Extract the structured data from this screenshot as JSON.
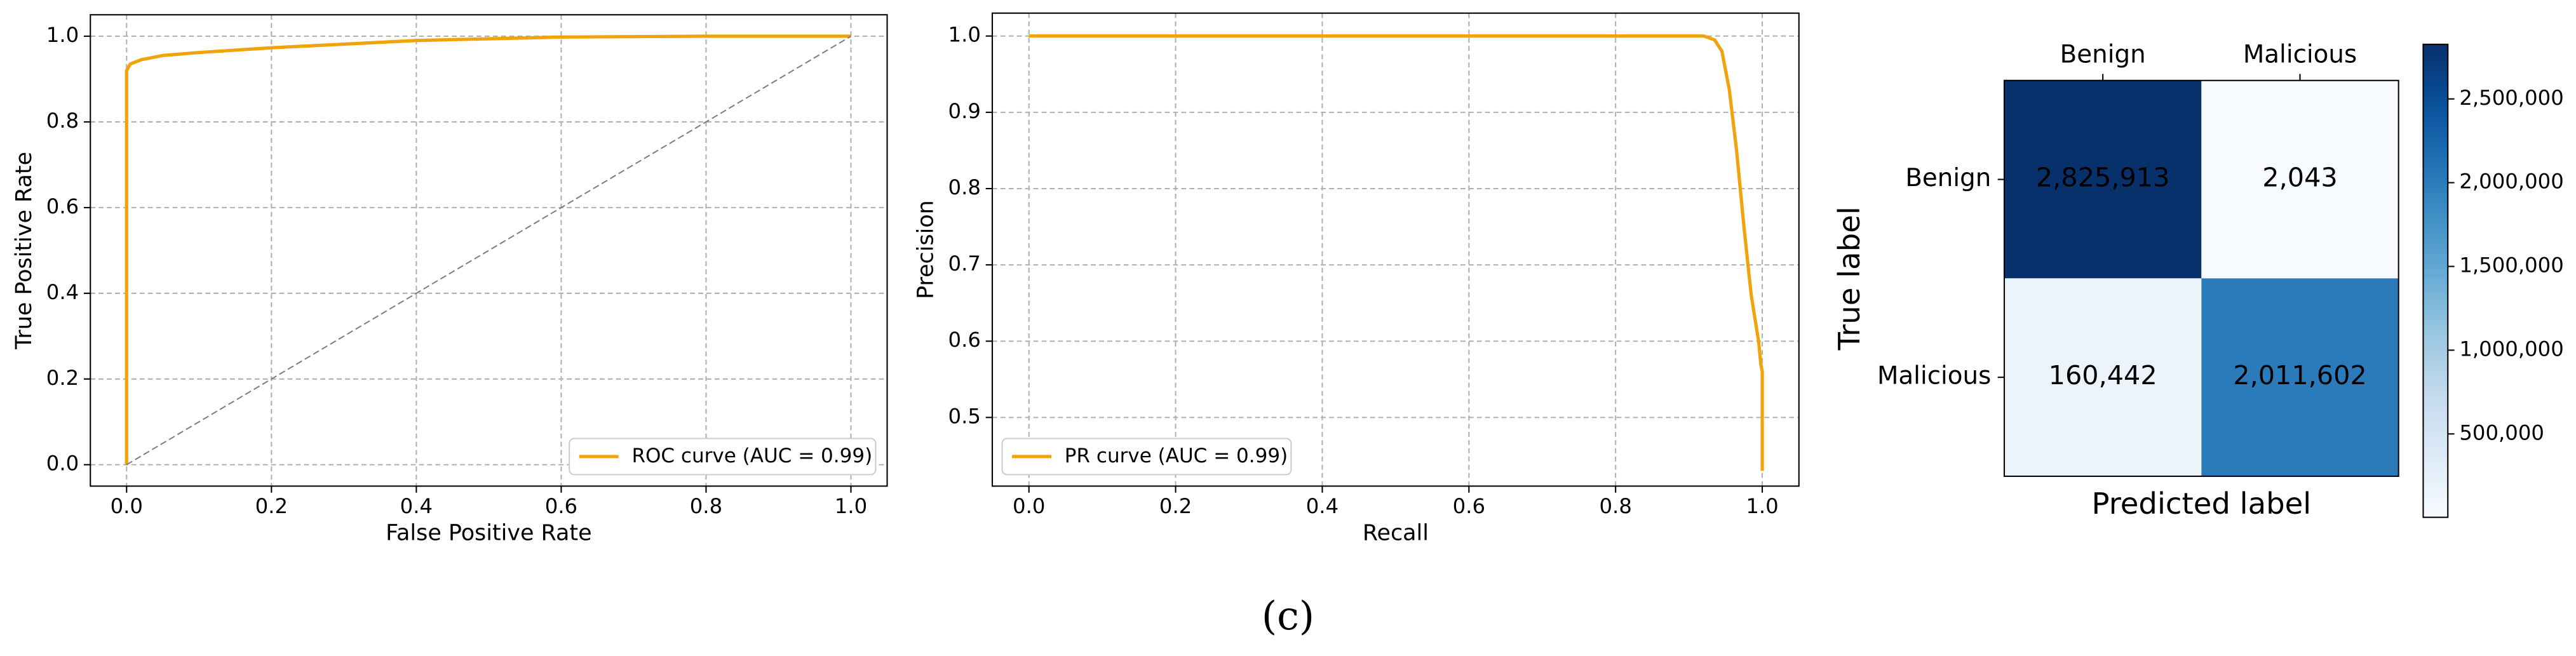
{
  "caption": "(c)",
  "chart_data": [
    {
      "type": "line",
      "xlabel": "False Positive Rate",
      "ylabel": "True Positive Rate",
      "xlim": [
        -0.05,
        1.05
      ],
      "ylim": [
        -0.05,
        1.05
      ],
      "xticks": [
        {
          "value": 0,
          "label": "0.0"
        },
        0.2,
        0.4,
        0.6,
        0.8,
        {
          "value": 1,
          "label": "1.0"
        }
      ],
      "yticks": [
        {
          "value": 0,
          "label": "0.0"
        },
        0.2,
        0.4,
        0.6,
        0.8,
        {
          "value": 1,
          "label": "1.0"
        }
      ],
      "grid": true,
      "legend": "lower right",
      "series": [
        {
          "name": "ROC curve (AUC = 0.99)",
          "color": "#f0a30a",
          "x": [
            0,
            0,
            0.005,
            0.02,
            0.05,
            0.1,
            0.2,
            0.4,
            0.6,
            0.8,
            1
          ],
          "values": [
            0,
            0.92,
            0.935,
            0.945,
            0.955,
            0.962,
            0.973,
            0.99,
            0.998,
            1,
            1
          ]
        },
        {
          "color": "#808080",
          "style": "dashed",
          "x": [
            0,
            1
          ],
          "values": [
            0,
            1
          ]
        }
      ]
    },
    {
      "type": "line",
      "xlabel": "Recall",
      "ylabel": "Precision",
      "xlim": [
        -0.05,
        1.05
      ],
      "ylim": [
        0.41,
        1.03
      ],
      "xticks": [
        {
          "value": 0,
          "label": "0.0"
        },
        0.2,
        0.4,
        0.6,
        0.8,
        {
          "value": 1,
          "label": "1.0"
        }
      ],
      "yticks": [
        0.5,
        0.6,
        0.7,
        0.8,
        0.9,
        {
          "value": 1,
          "label": "1.0"
        }
      ],
      "grid": true,
      "legend": "lower left",
      "series": [
        {
          "name": "PR curve (AUC = 0.99)",
          "color": "#f0a30a",
          "x": [
            0,
            0.2,
            0.4,
            0.6,
            0.8,
            0.92,
            0.935,
            0.945,
            0.955,
            0.965,
            0.975,
            0.985,
            0.995,
            0.998,
            1,
            1
          ],
          "values": [
            1,
            1,
            1,
            1,
            1,
            1,
            0.995,
            0.98,
            0.93,
            0.85,
            0.75,
            0.66,
            0.6,
            0.57,
            0.56,
            0.43
          ]
        }
      ]
    },
    {
      "type": "heatmap",
      "xlabel": "Predicted label",
      "ylabel": "True label",
      "rows": [
        "Benign",
        "Malicious"
      ],
      "columns": [
        "Benign",
        "Malicious"
      ],
      "values": [
        [
          2825913,
          2043
        ],
        [
          160442,
          2011602
        ]
      ],
      "value_labels": [
        [
          "2,825,913",
          "2,043"
        ],
        [
          "160,442",
          "2,011,602"
        ]
      ],
      "colormap": "Blues",
      "clim": [
        2043,
        2825913
      ],
      "colorbar_ticks": [
        {
          "value": 500000,
          "label": "500,000"
        },
        {
          "value": 1000000,
          "label": "1,000,000"
        },
        {
          "value": 1500000,
          "label": "1,500,000"
        },
        {
          "value": 2000000,
          "label": "2,000,000"
        },
        {
          "value": 2500000,
          "label": "2,500,000"
        }
      ]
    }
  ]
}
